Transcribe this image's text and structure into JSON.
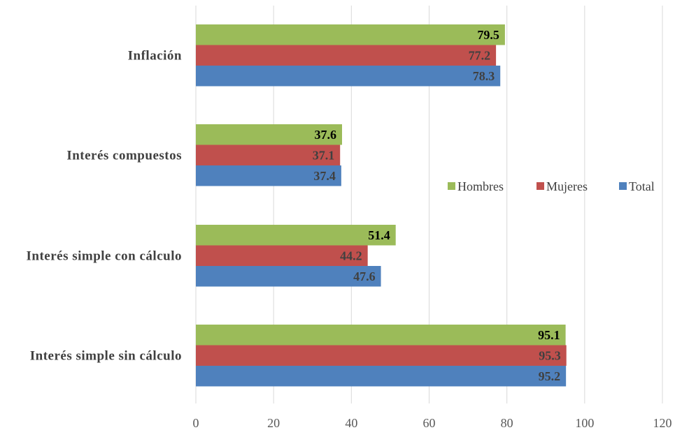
{
  "chart_data": {
    "type": "bar",
    "orientation": "horizontal",
    "categories": [
      "Inflación",
      "Interés compuestos",
      "Interés simple con cálculo",
      "Interés simple sin cálculo"
    ],
    "series": [
      {
        "name": "Hombres",
        "color": "#9BBB59",
        "label_color": "#000000",
        "values": [
          79.5,
          37.6,
          51.4,
          95.1
        ]
      },
      {
        "name": "Mujeres",
        "color": "#C0504D",
        "label_color": "#404040",
        "values": [
          77.2,
          37.1,
          44.2,
          95.3
        ]
      },
      {
        "name": "Total",
        "color": "#4F81BD",
        "label_color": "#404040",
        "values": [
          78.3,
          37.4,
          47.6,
          95.2
        ]
      }
    ],
    "xlim": [
      0,
      120
    ],
    "xticks": [
      0,
      20,
      40,
      60,
      80,
      100,
      120
    ],
    "grid": true,
    "legend": "right-center",
    "title": "",
    "xlabel": "",
    "ylabel": ""
  }
}
